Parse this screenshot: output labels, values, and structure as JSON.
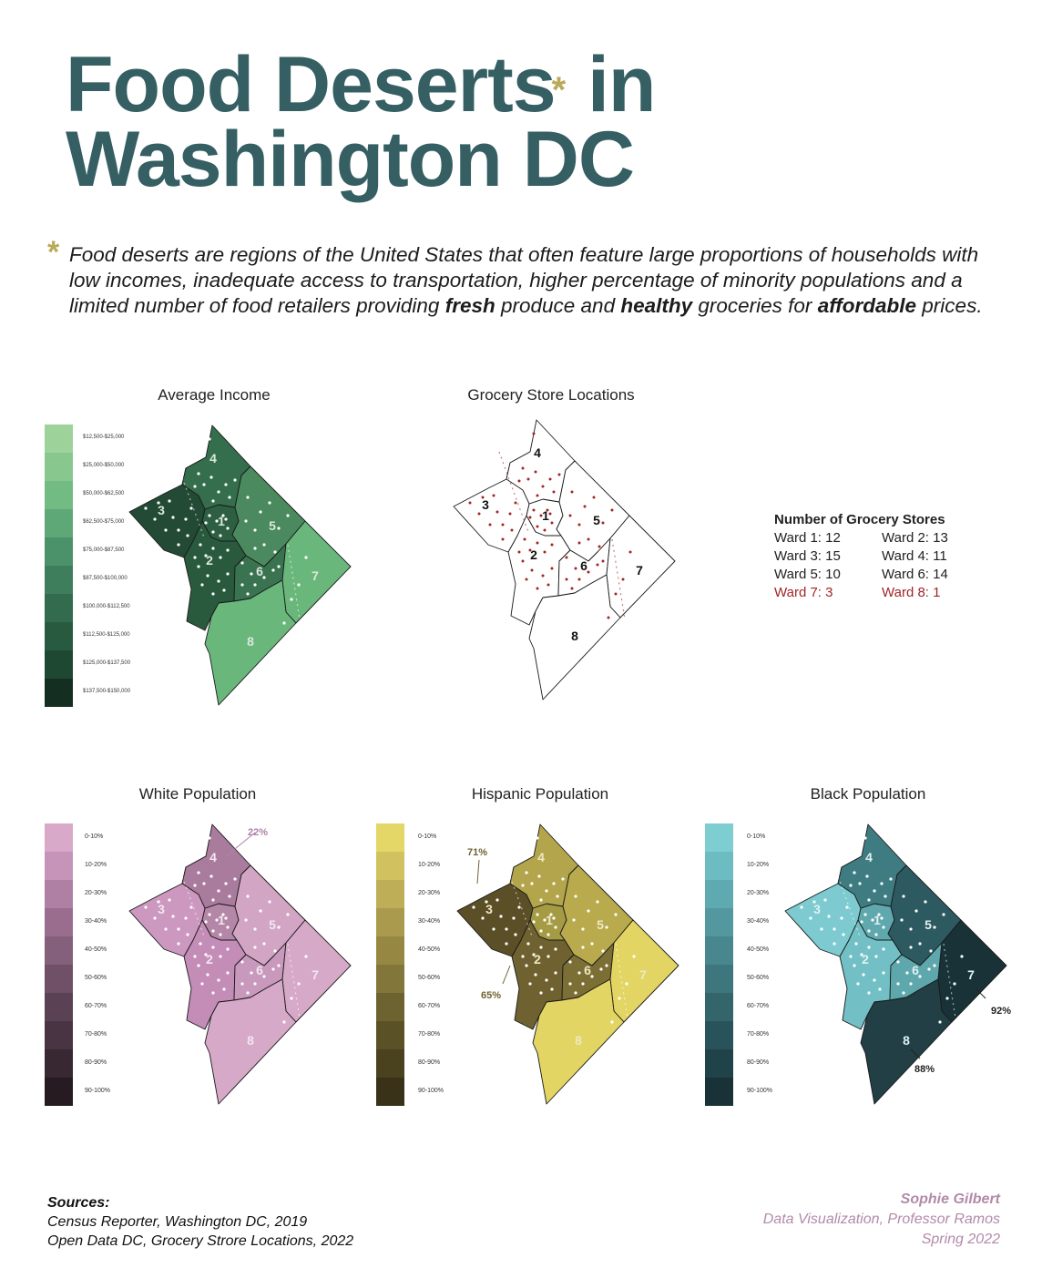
{
  "title": {
    "line1": "Food Deserts",
    "asterisk": "*",
    "line1b": " in",
    "line2": "Washington DC"
  },
  "intro": {
    "asterisk": "*",
    "text_a": "Food deserts are regions of the United States that often feature large proportions of households with low incomes, inadequate access to transportation, higher percentage of minority populations and a limited number of food retailers providing ",
    "bold1": "fresh",
    "text_b": " produce and ",
    "bold2": "healthy",
    "text_c": " groceries for ",
    "bold3": "affordable",
    "text_d": " prices."
  },
  "panels": {
    "income": {
      "title": "Average Income",
      "legend": [
        "$12,500-$25,000",
        "$25,000-$50,000",
        "$50,000-$62,500",
        "$62,500-$75,000",
        "$75,000-$87,500",
        "$87,500-$100,000",
        "$100,000-$112,500",
        "$112,500-$125,000",
        "$125,000-$137,500",
        "$137,500-$150,000"
      ],
      "legend_colors": [
        "#9dd39a",
        "#88c88e",
        "#72bc84",
        "#5ea877",
        "#4b926a",
        "#3f7e5c",
        "#336b4e",
        "#285a40",
        "#1e4832",
        "#142e21"
      ],
      "ward_colors": {
        "1": "#2d5f42",
        "2": "#2a5a3e",
        "3": "#234a34",
        "4": "#356e4c",
        "5": "#4a8a5e",
        "6": "#3a7350",
        "7": "#6ab77c",
        "8": "#6ab77c"
      }
    },
    "grocery": {
      "title": "Grocery Store Locations",
      "stores_heading": "Number of Grocery Stores",
      "stores": [
        {
          "label": "Ward 1: 12",
          "highlight": false
        },
        {
          "label": "Ward 2: 13",
          "highlight": false
        },
        {
          "label": "Ward 3: 15",
          "highlight": false
        },
        {
          "label": "Ward 4: 11",
          "highlight": false
        },
        {
          "label": "Ward 5: 10",
          "highlight": false
        },
        {
          "label": "Ward 6: 14",
          "highlight": false
        },
        {
          "label": "Ward 7: 3",
          "highlight": true
        },
        {
          "label": "Ward 8: 1",
          "highlight": true
        }
      ]
    },
    "white": {
      "title": "White Population",
      "legend": [
        "0-10%",
        "10-20%",
        "20-30%",
        "30-40%",
        "40-50%",
        "50-60%",
        "60-70%",
        "70-80%",
        "80-90%",
        "90-100%"
      ],
      "legend_colors": [
        "#d8a9c9",
        "#c694b9",
        "#b07fa4",
        "#9a6d8f",
        "#85607c",
        "#6f5067",
        "#5a4154",
        "#483442",
        "#372831",
        "#271b22"
      ],
      "ward_colors": {
        "1": "#b487a8",
        "2": "#c38db8",
        "3": "#cc98bf",
        "4": "#a97c9d",
        "5": "#d2a5c4",
        "6": "#c899bd",
        "7": "#d6a9c8",
        "8": "#d6a9c8"
      },
      "callouts": [
        {
          "text": "22%"
        }
      ]
    },
    "hispanic": {
      "title": "Hispanic Population",
      "legend": [
        "0-10%",
        "10-20%",
        "20-30%",
        "30-40%",
        "40-50%",
        "50-60%",
        "60-70%",
        "70-80%",
        "80-90%",
        "90-100%"
      ],
      "legend_colors": [
        "#e4d667",
        "#d1c25f",
        "#beae57",
        "#a99a4d",
        "#968843",
        "#82763a",
        "#6d6330",
        "#5b5127",
        "#4a411f",
        "#393118"
      ],
      "ward_colors": {
        "1": "#a69b45",
        "2": "#6f6230",
        "3": "#5b4f27",
        "4": "#b3a54b",
        "5": "#b8aa4d",
        "6": "#7c6f35",
        "7": "#e3d563",
        "8": "#e3d563"
      },
      "callouts": [
        {
          "text": "71%"
        },
        {
          "text": "65%"
        }
      ]
    },
    "black": {
      "title": "Black Population",
      "legend": [
        "0-10%",
        "10-20%",
        "20-30%",
        "30-40%",
        "40-50%",
        "50-60%",
        "60-70%",
        "70-80%",
        "80-90%",
        "90-100%"
      ],
      "legend_colors": [
        "#7ecdd1",
        "#6cbcc1",
        "#5eaab0",
        "#53989e",
        "#48878d",
        "#3d767c",
        "#33656b",
        "#29535a",
        "#204249",
        "#183237"
      ],
      "ward_colors": {
        "1": "#5fa8ad",
        "2": "#72c0c5",
        "3": "#7dcbd0",
        "4": "#3f7c82",
        "5": "#2d5a60",
        "6": "#5ea8ad",
        "7": "#183237",
        "8": "#213f44"
      },
      "callouts": [
        {
          "text": "92%"
        },
        {
          "text": "88%"
        }
      ]
    }
  },
  "sources": {
    "heading": "Sources:",
    "line1": "Census Reporter, Washington DC, 2019",
    "line2": "Open Data DC, Grocery Strore Locations, 2022"
  },
  "credit": {
    "name": "Sophie Gilbert",
    "line1": "Data Visualization, Professor Ramos",
    "line2": "Spring 2022"
  }
}
